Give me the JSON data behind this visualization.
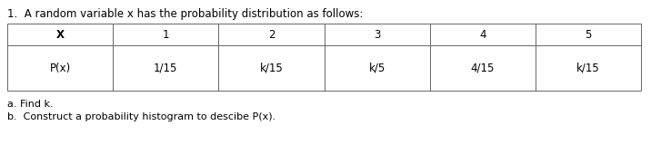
{
  "title": "1.  A random variable x has the probability distribution as follows:",
  "title_fontsize": 8.5,
  "col_headers": [
    "X",
    "1",
    "2",
    "3",
    "4",
    "5"
  ],
  "row1_label": "P(x)",
  "row1_values": [
    "1/15",
    "k/15",
    "k/5",
    "4/15",
    "k/15"
  ],
  "footer_lines": [
    "a. Find k.",
    "b.  Construct a probability histogram to descibe P(x)."
  ],
  "footer_fontsize": 8.0,
  "cell_fontsize": 8.5,
  "bg_color": "#ffffff",
  "text_color": "#000000",
  "line_color": "#666666"
}
